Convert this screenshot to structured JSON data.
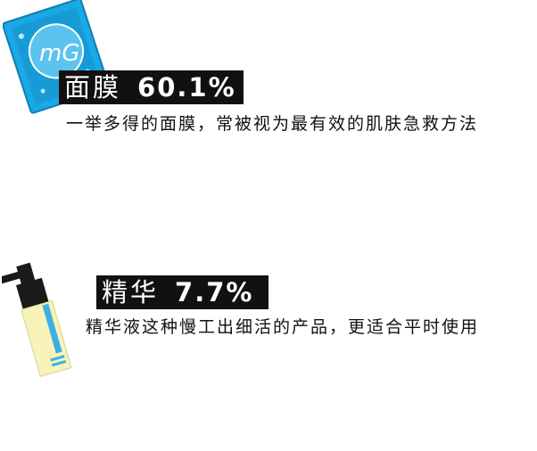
{
  "items": [
    {
      "name": "面膜",
      "percent": "60.1%",
      "description": "一举多得的面膜，常被视为最有效的肌肤急救方法",
      "icon": "face-mask-package-icon",
      "icon_text": "mG",
      "colors": {
        "package": "#1aa8e6",
        "package_inner": "#1590c9",
        "circle": "#5cc3ee"
      }
    },
    {
      "name": "精华",
      "percent": "7.7%",
      "description": "精华液这种慢工出细活的产品，更适合平时使用",
      "icon": "serum-bottle-icon",
      "colors": {
        "bottle": "#f7f3b9",
        "stripe": "#3ab0e6",
        "pump": "#1a1a1a"
      }
    }
  ]
}
